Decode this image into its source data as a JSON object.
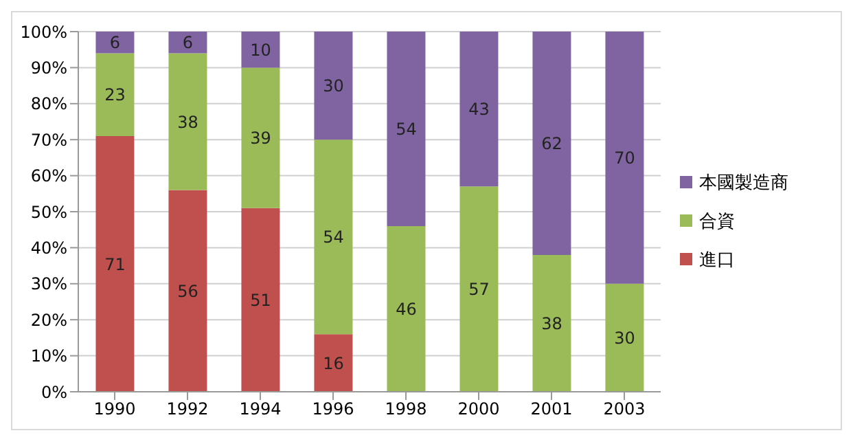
{
  "chart_data": {
    "type": "bar",
    "stacked": true,
    "categories": [
      "1990",
      "1992",
      "1994",
      "1996",
      "1998",
      "2000",
      "2001",
      "2003"
    ],
    "series": [
      {
        "name": "進口",
        "color": "#c0504d",
        "values": [
          71,
          56,
          51,
          16,
          null,
          null,
          null,
          null
        ]
      },
      {
        "name": "合資",
        "color": "#9bbb59",
        "values": [
          23,
          38,
          39,
          54,
          46,
          57,
          38,
          30
        ]
      },
      {
        "name": "本國製造商",
        "color": "#8064a2",
        "values": [
          6,
          6,
          10,
          30,
          54,
          43,
          62,
          70
        ]
      }
    ],
    "ylim": [
      0,
      100
    ],
    "yticks": [
      {
        "value": 0,
        "label": "0%"
      },
      {
        "value": 10,
        "label": "10%"
      },
      {
        "value": 20,
        "label": "20%"
      },
      {
        "value": 30,
        "label": "30%"
      },
      {
        "value": 40,
        "label": "40%"
      },
      {
        "value": 50,
        "label": "50%"
      },
      {
        "value": 60,
        "label": "60%"
      },
      {
        "value": 70,
        "label": "70%"
      },
      {
        "value": 80,
        "label": "80%"
      },
      {
        "value": 90,
        "label": "90%"
      },
      {
        "value": 100,
        "label": "100%"
      }
    ],
    "grid": "y",
    "legend": "right",
    "data_labels": true
  }
}
